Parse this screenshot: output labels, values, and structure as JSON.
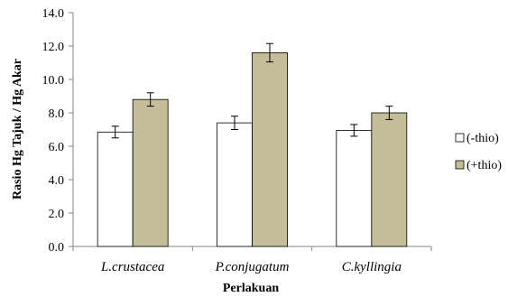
{
  "chart_data": {
    "type": "bar",
    "xlabel": "Perlakuan",
    "ylabel": "Rasio Hg Tajuk / Hg Akar",
    "ylim": [
      0,
      14
    ],
    "yticks": [
      "0.0",
      "2.0",
      "4.0",
      "6.0",
      "8.0",
      "10.0",
      "12.0",
      "14.0"
    ],
    "categories": [
      "L.crustacea",
      "P.conjugatum",
      "C.kyllingia"
    ],
    "series": [
      {
        "name": "(-thio)",
        "values": [
          6.85,
          7.4,
          6.95
        ],
        "errors": [
          0.35,
          0.4,
          0.35
        ],
        "color": "#ffffff"
      },
      {
        "name": "(+thio)",
        "values": [
          8.8,
          11.6,
          8.0
        ],
        "errors": [
          0.4,
          0.55,
          0.4
        ],
        "color": "#c4bd97"
      }
    ],
    "grid": false,
    "legend_position": "right"
  }
}
